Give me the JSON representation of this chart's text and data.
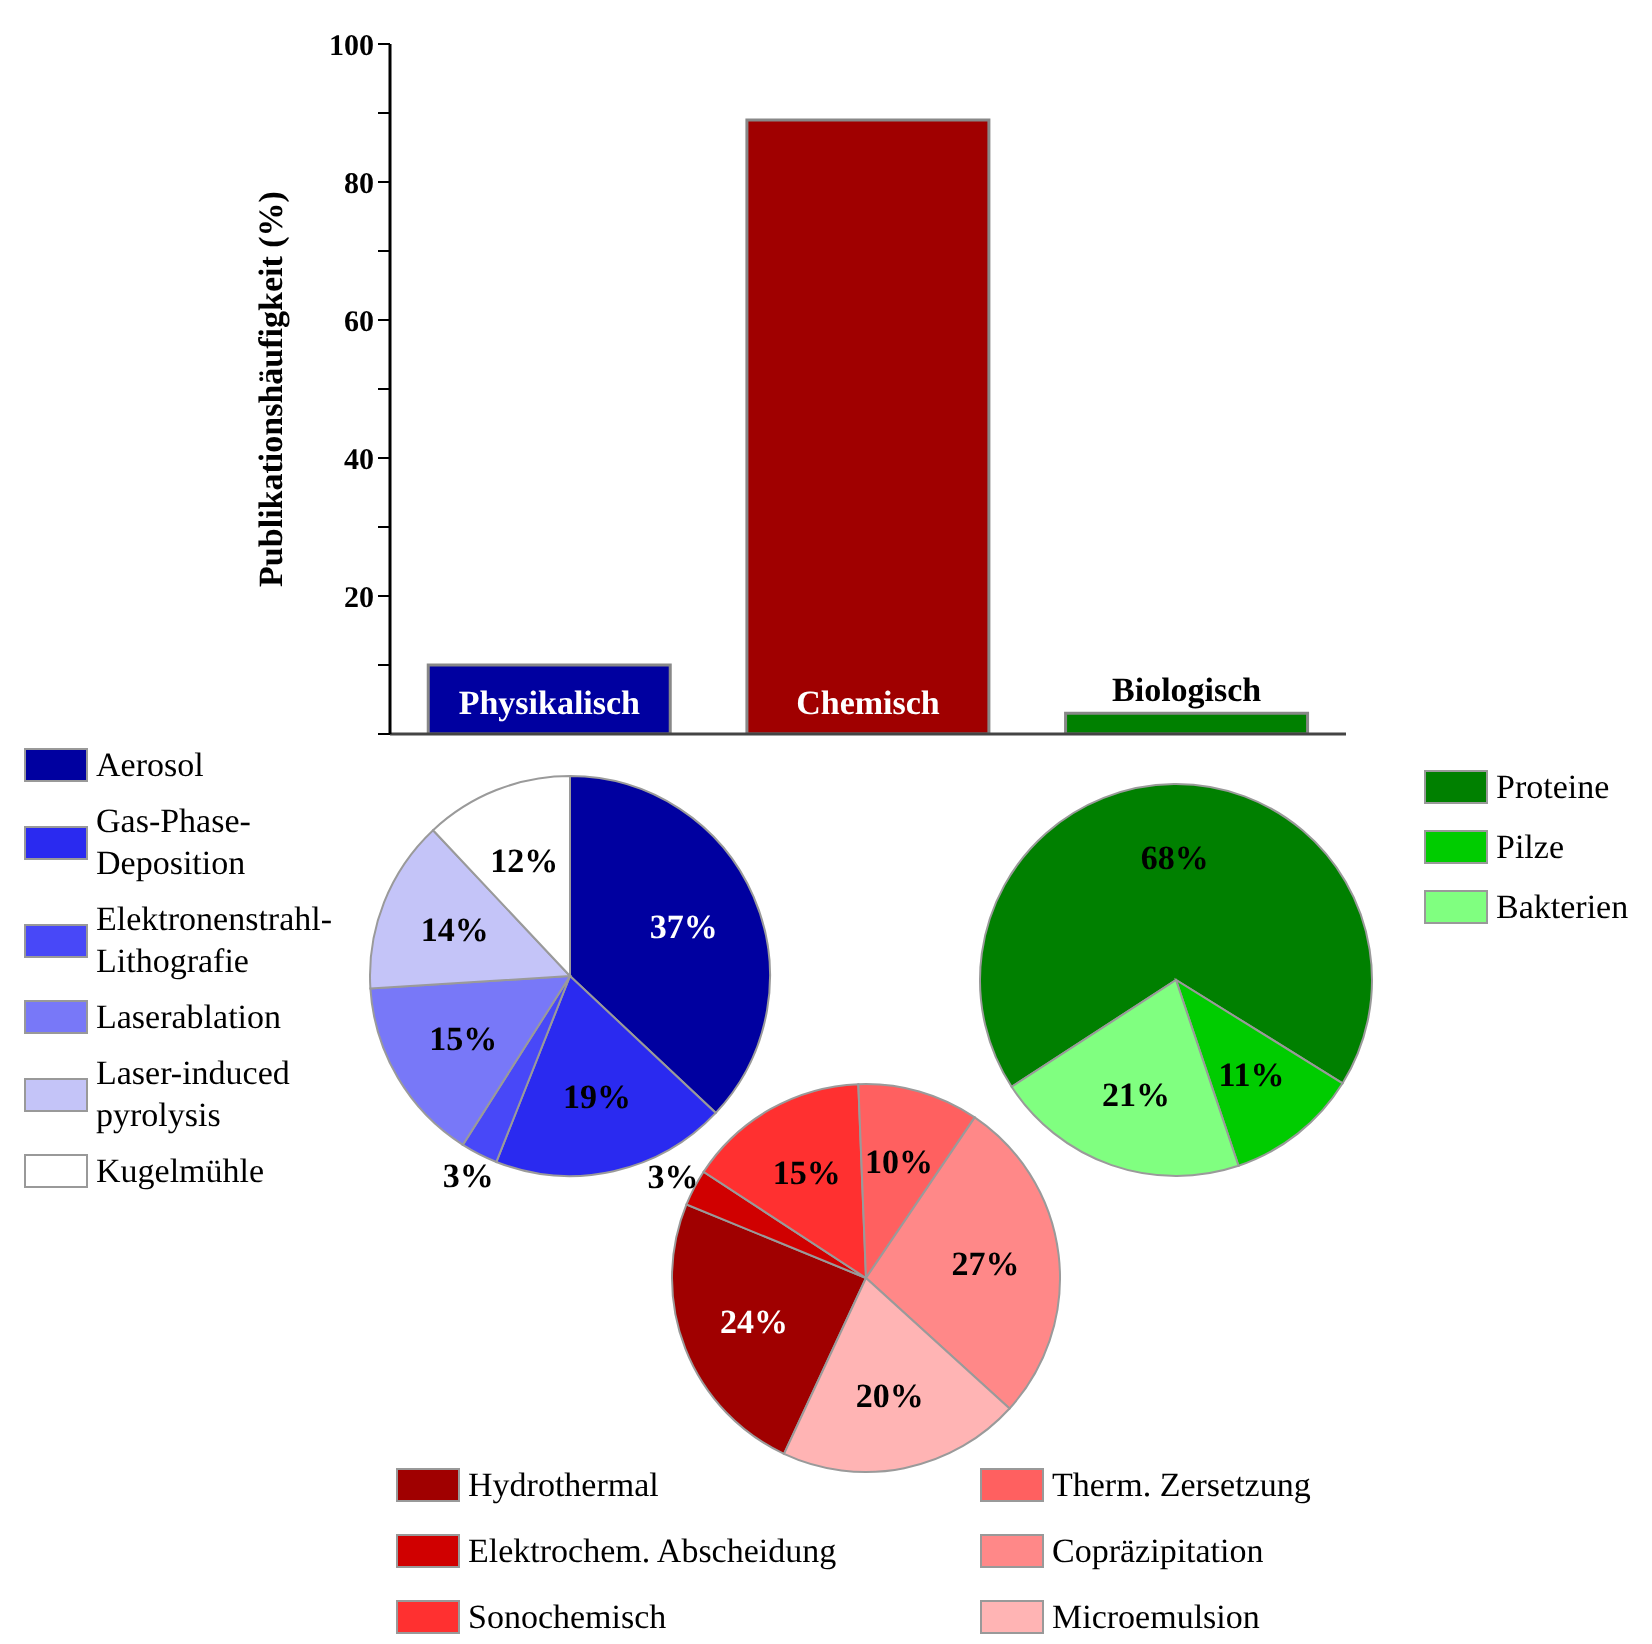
{
  "chart_data": [
    {
      "type": "bar",
      "ylabel": "Publikationshäufigkeit (%)",
      "categories": [
        "Physikalisch",
        "Chemisch",
        "Biologisch"
      ],
      "values": [
        10,
        89,
        3
      ],
      "colors": [
        "#0000a0",
        "#a00000",
        "#008000"
      ],
      "ylim": [
        0,
        100
      ],
      "yticks": [
        {
          "value": 0,
          "label": null
        },
        {
          "value": 10,
          "label": null
        },
        20,
        {
          "value": 30,
          "label": null
        },
        40,
        {
          "value": 50,
          "label": null
        },
        60,
        {
          "value": 70,
          "label": null
        },
        80,
        {
          "value": 90,
          "label": null
        },
        100
      ]
    },
    {
      "type": "pie",
      "categories": [
        "Aerosol",
        "Gas-Phase-Deposition",
        "Elektronenstrahl-Lithografie",
        "Laserablation",
        "Laser-induced pyrolysis",
        "Kugelmühle"
      ],
      "values": [
        37,
        19,
        3,
        15,
        14,
        12
      ],
      "colors": [
        "#0000a0",
        "#2a2af0",
        "#4848f8",
        "#7878f8",
        "#c4c4f8",
        "#ffffff"
      ],
      "value_labels": [
        "37%",
        "19%",
        "3%",
        "15%",
        "14%",
        "12%"
      ],
      "legend": "left"
    },
    {
      "type": "pie",
      "categories": [
        "Proteine",
        "Pilze",
        "Bakterien"
      ],
      "values": [
        68,
        11,
        21
      ],
      "colors": [
        "#008000",
        "#00cc00",
        "#80ff80"
      ],
      "value_labels": [
        "68%",
        "11%",
        "21%"
      ],
      "legend": "right"
    },
    {
      "type": "pie",
      "categories": [
        "Hydrothermal",
        "Elektrochem. Abscheidung",
        "Sonochemisch",
        "Therm. Zersetzung",
        "Copräzipitation",
        "Microemulsion"
      ],
      "values": [
        24,
        3,
        15,
        10,
        27,
        20
      ],
      "colors": [
        "#a00000",
        "#d00000",
        "#ff3030",
        "#ff6060",
        "#ff8888",
        "#ffb4b4"
      ],
      "value_labels": [
        "24%",
        "3%",
        "15%",
        "10%",
        "27%",
        "20%"
      ],
      "legend": "bottom"
    }
  ]
}
